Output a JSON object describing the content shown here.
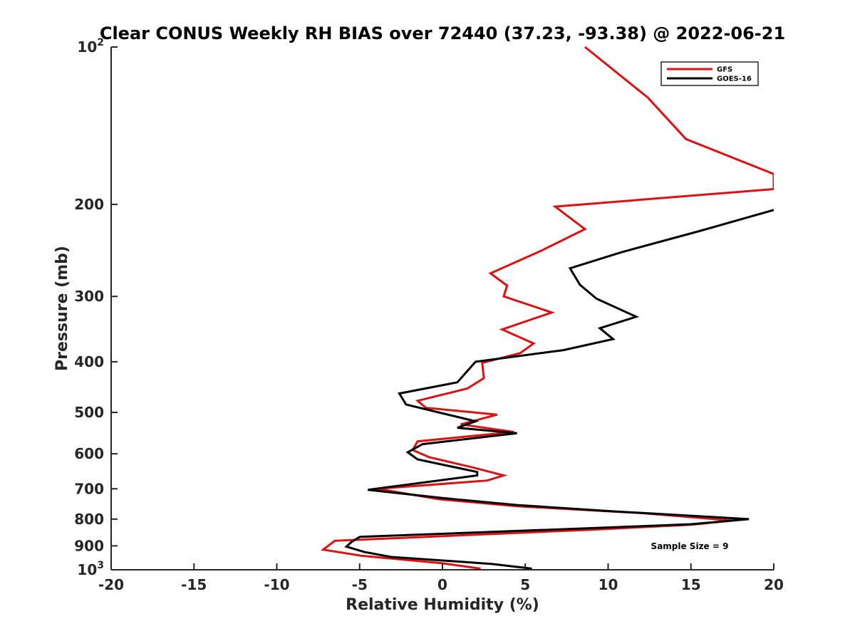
{
  "chart_data": {
    "type": "line",
    "title": "Clear CONUS Weekly RH BIAS over 72440 (37.23, -93.38) @ 2022-06-21",
    "xlabel": "Relative Humidity (%)",
    "ylabel": "Pressure (mb)",
    "xlim": [
      -20,
      20
    ],
    "ylim": [
      100,
      1000
    ],
    "y_scale": "log",
    "y_reversed": true,
    "grid": false,
    "legend_position": "top-right",
    "x_ticks": [
      -20,
      -15,
      -10,
      -5,
      0,
      5,
      10,
      15,
      20
    ],
    "y_ticks": [
      {
        "value": 100,
        "base": "10",
        "exp": "2"
      },
      {
        "value": 200,
        "label": "200"
      },
      {
        "value": 300,
        "label": "300"
      },
      {
        "value": 400,
        "label": "400"
      },
      {
        "value": 500,
        "label": "500"
      },
      {
        "value": 600,
        "label": "600"
      },
      {
        "value": 700,
        "label": "700"
      },
      {
        "value": 800,
        "label": "800"
      },
      {
        "value": 900,
        "label": "900"
      },
      {
        "value": 1000,
        "base": "10",
        "exp": "3"
      }
    ],
    "series": [
      {
        "name": "GFS",
        "color": "#dd1111",
        "points": [
          [
            8.6,
            100
          ],
          [
            12.4,
            125
          ],
          [
            14.7,
            150
          ],
          [
            20.0,
            175
          ],
          [
            20.0,
            187
          ],
          [
            6.8,
            202
          ],
          [
            8.6,
            223
          ],
          [
            6.0,
            245
          ],
          [
            2.9,
            271
          ],
          [
            3.9,
            286
          ],
          [
            3.7,
            300
          ],
          [
            6.6,
            322
          ],
          [
            3.6,
            347
          ],
          [
            5.5,
            369
          ],
          [
            4.7,
            385
          ],
          [
            2.4,
            402
          ],
          [
            2.5,
            430
          ],
          [
            1.5,
            450
          ],
          [
            -1.5,
            475
          ],
          [
            -1.0,
            490
          ],
          [
            3.3,
            505
          ],
          [
            1.1,
            527
          ],
          [
            4.3,
            545
          ],
          [
            -1.5,
            568
          ],
          [
            -1.8,
            590
          ],
          [
            -0.8,
            609
          ],
          [
            1.8,
            637
          ],
          [
            3.7,
            660
          ],
          [
            2.7,
            675
          ],
          [
            -3.9,
            700
          ],
          [
            -0.2,
            733
          ],
          [
            4.5,
            756
          ],
          [
            12.0,
            779
          ],
          [
            17.5,
            805
          ],
          [
            15.0,
            820
          ],
          [
            9.0,
            838
          ],
          [
            -6.5,
            880
          ],
          [
            -7.2,
            915
          ],
          [
            -4.9,
            940
          ],
          [
            0.0,
            972
          ],
          [
            2.3,
            995
          ]
        ]
      },
      {
        "name": "GOES-16",
        "color": "#000000",
        "points": [
          [
            20.0,
            205
          ],
          [
            15.5,
            225
          ],
          [
            10.8,
            247
          ],
          [
            7.7,
            265
          ],
          [
            8.3,
            285
          ],
          [
            9.3,
            303
          ],
          [
            11.7,
            328
          ],
          [
            9.5,
            345
          ],
          [
            10.3,
            362
          ],
          [
            7.3,
            380
          ],
          [
            2.0,
            400
          ],
          [
            0.9,
            438
          ],
          [
            -2.6,
            460
          ],
          [
            -2.2,
            483
          ],
          [
            2.0,
            520
          ],
          [
            0.9,
            535
          ],
          [
            4.5,
            548
          ],
          [
            -1.2,
            575
          ],
          [
            -2.1,
            596
          ],
          [
            -1.5,
            615
          ],
          [
            2.1,
            650
          ],
          [
            2.1,
            660
          ],
          [
            -4.5,
            703
          ],
          [
            0.2,
            730
          ],
          [
            4.5,
            752
          ],
          [
            10.0,
            772
          ],
          [
            18.5,
            800
          ],
          [
            15.0,
            818
          ],
          [
            10.0,
            830
          ],
          [
            -5.0,
            865
          ],
          [
            -5.5,
            885
          ],
          [
            -5.8,
            903
          ],
          [
            -4.7,
            925
          ],
          [
            -3.1,
            945
          ],
          [
            0.5,
            962
          ],
          [
            3.0,
            975
          ],
          [
            5.4,
            995
          ]
        ]
      }
    ],
    "legend": [
      {
        "name": "GFS",
        "color": "#dd1111"
      },
      {
        "name": "GOES-16",
        "color": "#000000"
      }
    ],
    "annotations": [
      {
        "text": "Sample Size = 9"
      }
    ]
  }
}
